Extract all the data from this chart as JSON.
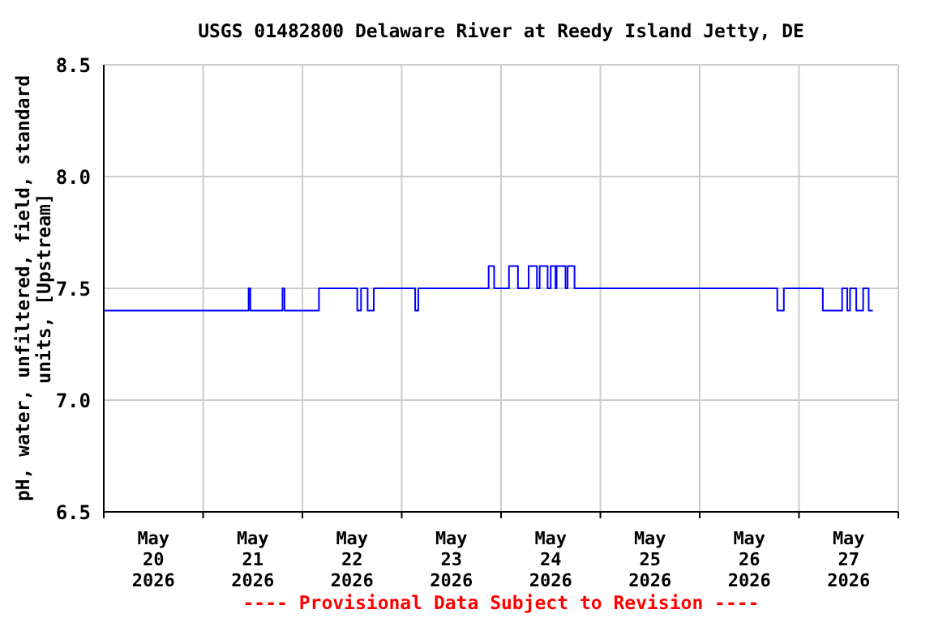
{
  "chart_data": {
    "type": "step",
    "title": "USGS 01482800 Delaware River at Reedy Island Jetty, DE",
    "ylabel": "pH, water, unfiltered, field, standard units, [Upstream]",
    "annotations": [
      "---- Provisional Data Subject to Revision ----"
    ],
    "x": [
      "2026-05-20T00:00",
      "2026-05-21T11:00",
      "2026-05-21T11:25",
      "2026-05-21T19:12",
      "2026-05-21T19:40",
      "2026-05-22T04:00",
      "2026-05-22T13:15",
      "2026-05-22T14:10",
      "2026-05-22T15:45",
      "2026-05-22T17:15",
      "2026-05-23T03:15",
      "2026-05-23T04:00",
      "2026-05-23T21:00",
      "2026-05-23T22:20",
      "2026-05-24T01:55",
      "2026-05-24T04:05",
      "2026-05-24T06:40",
      "2026-05-24T08:40",
      "2026-05-24T09:20",
      "2026-05-24T11:15",
      "2026-05-24T12:00",
      "2026-05-24T13:10",
      "2026-05-24T13:25",
      "2026-05-24T15:35",
      "2026-05-24T16:05",
      "2026-05-24T17:45",
      "2026-05-26T18:45",
      "2026-05-26T20:20",
      "2026-05-27T05:45",
      "2026-05-27T10:25",
      "2026-05-27T11:40",
      "2026-05-27T12:20",
      "2026-05-27T13:50",
      "2026-05-27T15:30",
      "2026-05-27T16:50",
      "2026-05-27T17:50"
    ],
    "series": [
      {
        "color": "#0000ff",
        "values": [
          7.4,
          7.5,
          7.4,
          7.5,
          7.4,
          7.5,
          7.4,
          7.5,
          7.4,
          7.5,
          7.4,
          7.5,
          7.6,
          7.5,
          7.6,
          7.5,
          7.6,
          7.5,
          7.6,
          7.5,
          7.6,
          7.5,
          7.6,
          7.5,
          7.6,
          7.5,
          7.4,
          7.5,
          7.4,
          7.5,
          7.4,
          7.5,
          7.4,
          7.5,
          7.4,
          7.4
        ]
      }
    ],
    "xlim": [
      "2026-05-20T00:00",
      "2026-05-28T00:00"
    ],
    "xticks": [
      {
        "value": "2026-05-20T00:00",
        "label": null
      },
      {
        "value": "2026-05-20T12:00",
        "label": "May\n20\n2026"
      },
      {
        "value": "2026-05-21T00:00",
        "label": null
      },
      {
        "value": "2026-05-21T12:00",
        "label": "May\n21\n2026"
      },
      {
        "value": "2026-05-22T00:00",
        "label": null
      },
      {
        "value": "2026-05-22T12:00",
        "label": "May\n22\n2026"
      },
      {
        "value": "2026-05-23T00:00",
        "label": null
      },
      {
        "value": "2026-05-23T12:00",
        "label": "May\n23\n2026"
      },
      {
        "value": "2026-05-24T00:00",
        "label": null
      },
      {
        "value": "2026-05-24T12:00",
        "label": "May\n24\n2026"
      },
      {
        "value": "2026-05-25T00:00",
        "label": null
      },
      {
        "value": "2026-05-25T12:00",
        "label": "May\n25\n2026"
      },
      {
        "value": "2026-05-26T00:00",
        "label": null
      },
      {
        "value": "2026-05-26T12:00",
        "label": "May\n26\n2026"
      },
      {
        "value": "2026-05-27T00:00",
        "label": null
      },
      {
        "value": "2026-05-27T12:00",
        "label": "May\n27\n2026"
      },
      {
        "value": "2026-05-28T00:00",
        "label": null
      }
    ],
    "ylim": [
      6.5,
      8.5
    ],
    "yticks": [
      6.5,
      {
        "value": 7,
        "label": "7.0"
      },
      7.5,
      {
        "value": 8,
        "label": "8.0"
      },
      8.5
    ],
    "grid": true,
    "marker": "none",
    "line_style": "solid"
  }
}
